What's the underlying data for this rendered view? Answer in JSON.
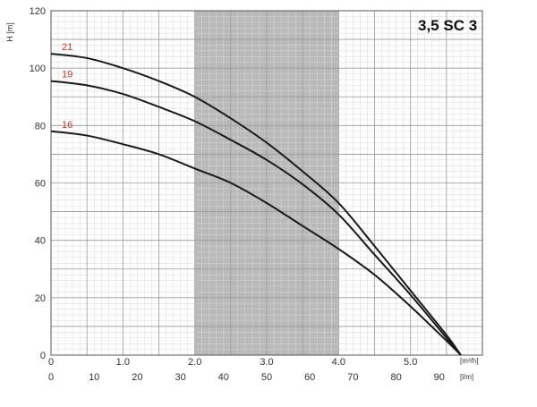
{
  "chart_data": {
    "type": "line",
    "title": "3,5 SC 3",
    "ylabel": "H [m]",
    "xlabel_primary": "[m³/h]",
    "xlabel_secondary": "[l/m]",
    "xlim": [
      0,
      6
    ],
    "ylim": [
      0,
      120
    ],
    "x_ticks": [
      "0",
      "1.0",
      "2.0",
      "3.0",
      "4.0",
      "5.0"
    ],
    "x_secondary_ticks": [
      "0",
      "10",
      "20",
      "30",
      "40",
      "50",
      "60",
      "70",
      "80",
      "90"
    ],
    "y_ticks": [
      "0",
      "20",
      "40",
      "60",
      "80",
      "100",
      "120"
    ],
    "grid": true,
    "highlight_band": [
      2.0,
      4.0
    ],
    "series": [
      {
        "name": "21",
        "color": "#1a1a1a",
        "x": [
          0,
          0.5,
          1.0,
          1.5,
          2.0,
          2.5,
          3.0,
          3.5,
          4.0,
          4.5,
          5.0,
          5.5,
          5.7
        ],
        "y": [
          105,
          103.5,
          100,
          95.5,
          90,
          82.5,
          74,
          64,
          53,
          38,
          22.5,
          7,
          0
        ]
      },
      {
        "name": "19",
        "color": "#1a1a1a",
        "x": [
          0,
          0.5,
          1.0,
          1.5,
          2.0,
          2.5,
          3.0,
          3.5,
          4.0,
          4.5,
          5.0,
          5.5,
          5.7
        ],
        "y": [
          95.5,
          94,
          91,
          86.5,
          81.5,
          75,
          68,
          59.5,
          49,
          35,
          21,
          6,
          0
        ]
      },
      {
        "name": "16",
        "color": "#1a1a1a",
        "x": [
          0,
          0.5,
          1.0,
          1.5,
          2.0,
          2.5,
          3.0,
          3.5,
          4.0,
          4.5,
          5.0,
          5.5,
          5.7
        ],
        "y": [
          78,
          76.5,
          73.5,
          70,
          65,
          60,
          53,
          45,
          37,
          28,
          17,
          5,
          0
        ]
      }
    ]
  }
}
